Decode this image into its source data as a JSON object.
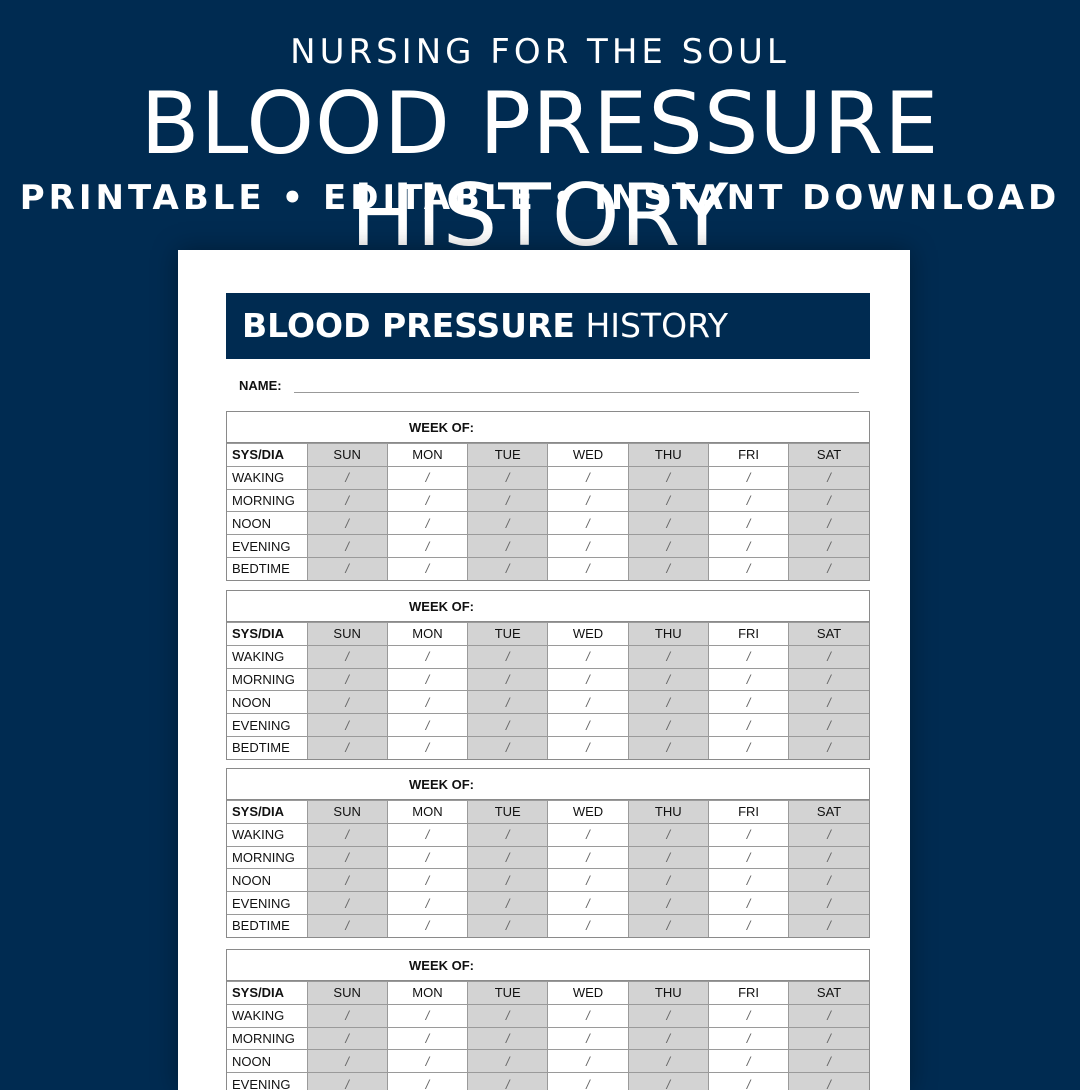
{
  "banner": {
    "brand": "NURSING FOR THE SOUL",
    "title": "BLOOD PRESSURE HISTORY",
    "tagline": "PRINTABLE • EDITABLE • INSTANT DOWNLOAD"
  },
  "sheet": {
    "title_bold": "BLOOD PRESSURE",
    "title_light": "HISTORY",
    "name_label": "NAME:",
    "week_label": "WEEK OF:",
    "column_label": "SYS/DIA",
    "days": [
      "SUN",
      "MON",
      "TUE",
      "WED",
      "THU",
      "FRI",
      "SAT"
    ],
    "times": [
      "WAKING",
      "MORNING",
      "NOON",
      "EVENING",
      "BEDTIME"
    ],
    "cell_mark": "/"
  },
  "colors": {
    "navy": "#002b51",
    "shade": "#d3d3d3"
  }
}
